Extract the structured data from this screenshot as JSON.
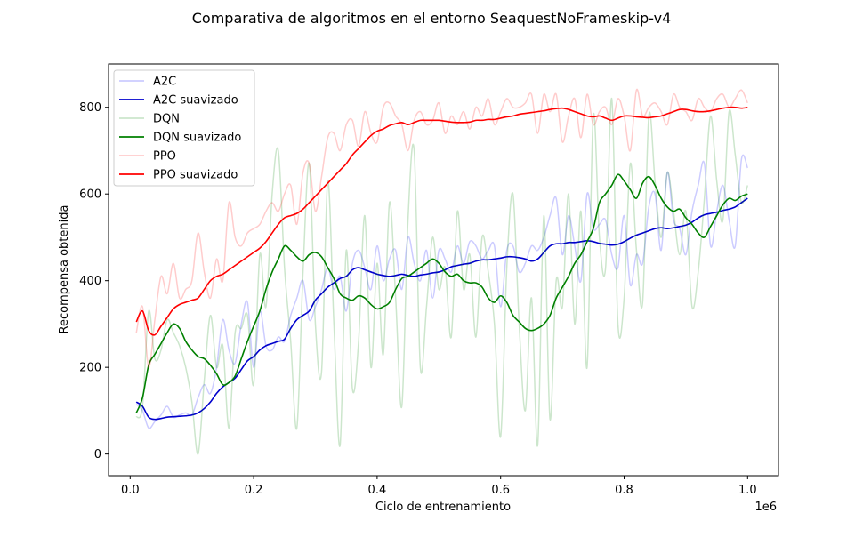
{
  "chart_data": {
    "type": "line",
    "title": "Comparativa de algoritmos en el entorno SeaquestNoFrameskip-v4",
    "xlabel": "Ciclo de entrenamiento",
    "ylabel": "Recompensa obtenida",
    "x_offset_label": "1e6",
    "xlim": [
      -0.035,
      1.05
    ],
    "ylim": [
      -50,
      900
    ],
    "xticks": [
      0.0,
      0.2,
      0.4,
      0.6,
      0.8,
      1.0
    ],
    "xtick_labels": [
      "0.0",
      "0.2",
      "0.4",
      "0.6",
      "0.8",
      "1.0"
    ],
    "yticks": [
      0,
      200,
      400,
      600,
      800
    ],
    "ytick_labels": [
      "0",
      "200",
      "400",
      "600",
      "800"
    ],
    "grid": false,
    "legend_position": "top-left",
    "x": [
      0.01,
      0.02,
      0.03,
      0.04,
      0.05,
      0.06,
      0.07,
      0.08,
      0.09,
      0.1,
      0.11,
      0.12,
      0.13,
      0.14,
      0.15,
      0.16,
      0.17,
      0.18,
      0.19,
      0.2,
      0.21,
      0.22,
      0.23,
      0.24,
      0.25,
      0.26,
      0.27,
      0.28,
      0.29,
      0.3,
      0.31,
      0.32,
      0.33,
      0.34,
      0.35,
      0.36,
      0.37,
      0.38,
      0.39,
      0.4,
      0.41,
      0.42,
      0.43,
      0.44,
      0.45,
      0.46,
      0.47,
      0.48,
      0.49,
      0.5,
      0.51,
      0.52,
      0.53,
      0.54,
      0.55,
      0.56,
      0.57,
      0.58,
      0.59,
      0.6,
      0.61,
      0.62,
      0.63,
      0.64,
      0.65,
      0.66,
      0.67,
      0.68,
      0.69,
      0.7,
      0.71,
      0.72,
      0.73,
      0.74,
      0.75,
      0.76,
      0.77,
      0.78,
      0.79,
      0.8,
      0.81,
      0.82,
      0.83,
      0.84,
      0.85,
      0.86,
      0.87,
      0.88,
      0.89,
      0.9,
      0.91,
      0.92,
      0.93,
      0.94,
      0.95,
      0.96,
      0.97,
      0.98,
      0.99,
      1.0
    ],
    "series": [
      {
        "name": "A2C",
        "color": "#0000ff",
        "opacity": 0.2,
        "values": [
          115,
          100,
          60,
          75,
          90,
          110,
          85,
          90,
          95,
          90,
          130,
          160,
          140,
          200,
          310,
          240,
          210,
          300,
          350,
          200,
          330,
          250,
          240,
          270,
          260,
          320,
          360,
          400,
          310,
          340,
          380,
          430,
          380,
          410,
          330,
          440,
          470,
          430,
          380,
          480,
          400,
          450,
          470,
          380,
          500,
          440,
          400,
          470,
          360,
          470,
          450,
          420,
          480,
          440,
          490,
          480,
          450,
          470,
          480,
          340,
          470,
          480,
          420,
          440,
          480,
          470,
          500,
          550,
          590,
          460,
          550,
          480,
          400,
          600,
          520,
          530,
          540,
          460,
          430,
          550,
          390,
          460,
          440,
          570,
          600,
          470,
          650,
          540,
          520,
          460,
          560,
          620,
          670,
          480,
          560,
          620,
          540,
          480,
          680,
          660
        ]
      },
      {
        "name": "A2C suavizado",
        "color": "#0000cd",
        "opacity": 1,
        "values": [
          120,
          110,
          85,
          80,
          82,
          85,
          86,
          87,
          88,
          90,
          95,
          105,
          120,
          140,
          155,
          165,
          175,
          195,
          215,
          225,
          240,
          250,
          255,
          260,
          265,
          290,
          310,
          320,
          330,
          355,
          370,
          385,
          395,
          405,
          410,
          425,
          430,
          425,
          420,
          415,
          412,
          410,
          412,
          415,
          412,
          410,
          413,
          415,
          418,
          420,
          425,
          432,
          435,
          438,
          440,
          445,
          448,
          448,
          450,
          452,
          455,
          455,
          453,
          450,
          445,
          450,
          465,
          480,
          485,
          485,
          488,
          488,
          490,
          492,
          490,
          486,
          484,
          482,
          484,
          490,
          498,
          505,
          510,
          515,
          520,
          522,
          520,
          522,
          525,
          528,
          535,
          545,
          552,
          555,
          558,
          562,
          565,
          570,
          580,
          590
        ]
      },
      {
        "name": "DQN",
        "color": "#008000",
        "opacity": 0.2,
        "values": [
          85,
          110,
          330,
          220,
          240,
          310,
          280,
          250,
          200,
          120,
          0,
          170,
          320,
          200,
          250,
          60,
          280,
          290,
          320,
          160,
          460,
          340,
          600,
          700,
          430,
          260,
          60,
          420,
          670,
          300,
          190,
          630,
          300,
          20,
          470,
          150,
          260,
          550,
          200,
          440,
          230,
          580,
          360,
          110,
          540,
          700,
          200,
          340,
          500,
          380,
          430,
          270,
          560,
          380,
          460,
          270,
          500,
          420,
          300,
          40,
          430,
          600,
          300,
          100,
          360,
          20,
          550,
          80,
          400,
          340,
          600,
          300,
          560,
          200,
          780,
          500,
          430,
          820,
          300,
          360,
          670,
          470,
          350,
          780,
          630,
          500,
          650,
          560,
          460,
          560,
          340,
          420,
          590,
          780,
          630,
          540,
          790,
          690,
          580,
          620
        ]
      },
      {
        "name": "DQN suavizado",
        "color": "#008000",
        "opacity": 1,
        "values": [
          95,
          130,
          205,
          230,
          255,
          280,
          300,
          290,
          260,
          240,
          225,
          220,
          205,
          185,
          160,
          165,
          180,
          220,
          260,
          295,
          330,
          380,
          420,
          450,
          480,
          470,
          455,
          445,
          460,
          465,
          455,
          430,
          405,
          370,
          360,
          355,
          365,
          360,
          345,
          335,
          340,
          350,
          380,
          405,
          410,
          420,
          430,
          440,
          450,
          440,
          420,
          410,
          415,
          400,
          395,
          395,
          385,
          360,
          350,
          365,
          350,
          320,
          305,
          290,
          285,
          290,
          300,
          320,
          360,
          385,
          410,
          440,
          460,
          490,
          520,
          580,
          600,
          620,
          645,
          630,
          610,
          590,
          625,
          640,
          620,
          590,
          570,
          560,
          565,
          545,
          530,
          510,
          500,
          525,
          550,
          575,
          590,
          585,
          595,
          600
        ]
      },
      {
        "name": "PPO",
        "color": "#ff0000",
        "opacity": 0.2,
        "values": [
          280,
          340,
          200,
          310,
          410,
          370,
          440,
          360,
          380,
          400,
          510,
          420,
          360,
          450,
          400,
          580,
          500,
          480,
          510,
          520,
          530,
          560,
          580,
          560,
          600,
          620,
          530,
          650,
          670,
          560,
          640,
          730,
          740,
          700,
          760,
          770,
          710,
          790,
          740,
          720,
          800,
          810,
          780,
          760,
          700,
          770,
          790,
          760,
          770,
          810,
          740,
          780,
          760,
          790,
          750,
          800,
          780,
          820,
          760,
          790,
          820,
          800,
          800,
          810,
          830,
          740,
          830,
          790,
          830,
          720,
          780,
          820,
          730,
          830,
          760,
          790,
          800,
          760,
          820,
          780,
          700,
          840,
          780,
          800,
          810,
          790,
          760,
          830,
          800,
          790,
          770,
          820,
          800,
          790,
          820,
          830,
          800,
          820,
          840,
          810
        ]
      },
      {
        "name": "PPO suavizado",
        "color": "#ff0000",
        "opacity": 1,
        "values": [
          305,
          330,
          285,
          275,
          295,
          315,
          335,
          345,
          350,
          355,
          360,
          380,
          400,
          410,
          415,
          425,
          435,
          445,
          455,
          465,
          475,
          490,
          510,
          530,
          545,
          550,
          555,
          565,
          580,
          595,
          610,
          625,
          640,
          655,
          670,
          690,
          705,
          720,
          735,
          745,
          750,
          758,
          762,
          765,
          760,
          765,
          770,
          770,
          770,
          770,
          768,
          766,
          765,
          765,
          766,
          770,
          770,
          772,
          772,
          775,
          778,
          780,
          784,
          786,
          788,
          790,
          792,
          795,
          797,
          798,
          795,
          790,
          785,
          780,
          778,
          780,
          775,
          770,
          775,
          780,
          780,
          778,
          777,
          776,
          778,
          780,
          785,
          790,
          795,
          795,
          792,
          790,
          790,
          792,
          795,
          798,
          800,
          800,
          798,
          800
        ]
      }
    ]
  }
}
